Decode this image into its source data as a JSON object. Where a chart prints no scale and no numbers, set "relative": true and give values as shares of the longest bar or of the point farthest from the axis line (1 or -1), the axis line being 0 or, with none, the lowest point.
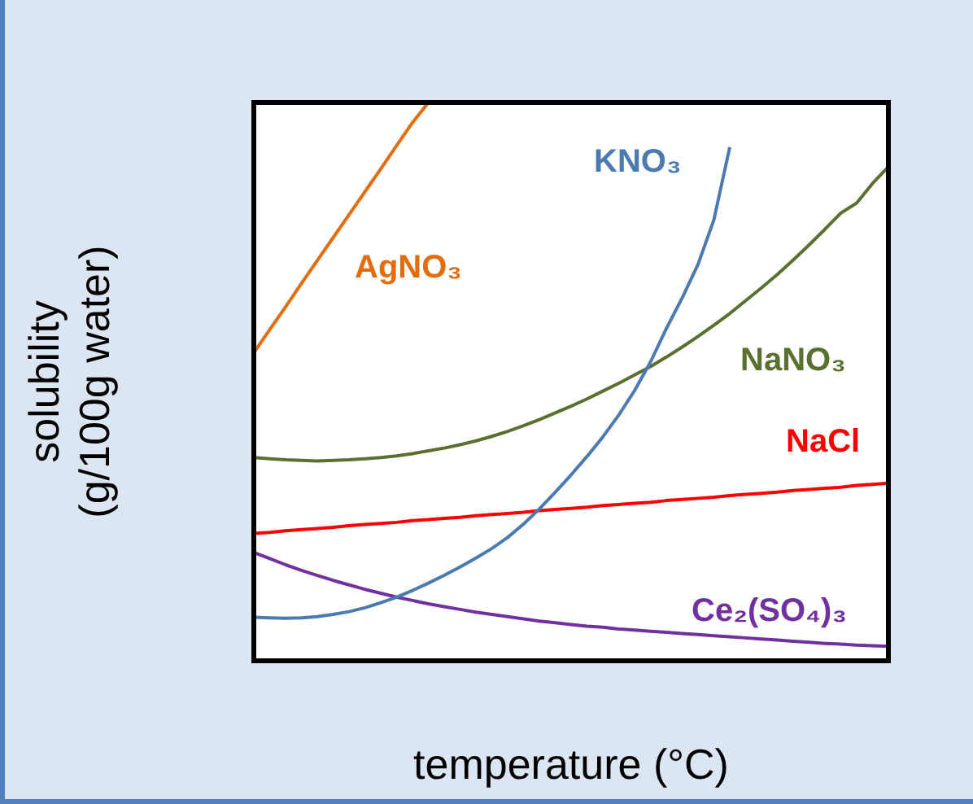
{
  "chart_data": {
    "type": "line",
    "relative": true,
    "xlabel": "temperature (°C)",
    "ylabel": "solubility\n(g/100g water)",
    "grid": false,
    "legend": false,
    "marker": "none",
    "line_style": "solid",
    "categories": [
      null,
      null,
      null,
      null,
      null,
      null,
      null,
      null,
      null,
      null,
      null,
      null,
      null,
      null,
      null,
      null,
      null,
      null,
      null,
      null,
      null,
      null,
      null,
      null,
      null,
      null,
      null,
      null,
      null,
      null,
      null,
      null,
      null,
      null,
      null,
      null,
      null,
      null,
      null,
      null,
      null
    ],
    "series": [
      {
        "name": "AgNO₃",
        "color": "#e46c0a",
        "values": [
          0.552,
          0.593,
          0.634,
          0.676,
          0.717,
          0.758,
          0.799,
          0.84,
          0.881,
          0.923,
          0.964,
          1,
          null,
          null,
          null,
          null,
          null,
          null,
          null,
          null,
          null,
          null,
          null,
          null,
          null,
          null,
          null,
          null,
          null,
          null,
          null,
          null,
          null,
          null,
          null,
          null,
          null,
          null,
          null,
          null,
          null
        ]
      },
      {
        "name": "KNO₃",
        "color": "#4a7ab0",
        "values": [
          0.078,
          0.077,
          0.076,
          0.077,
          0.079,
          0.083,
          0.088,
          0.095,
          0.104,
          0.114,
          0.126,
          0.139,
          0.153,
          0.168,
          0.184,
          0.201,
          0.221,
          0.245,
          0.272,
          0.302,
          0.333,
          0.366,
          0.401,
          0.44,
          0.484,
          0.535,
          0.595,
          0.65,
          0.71,
          0.79,
          0.92,
          null,
          null,
          null,
          null,
          null,
          null,
          null,
          null,
          null,
          null
        ]
      },
      {
        "name": "NaNO₃",
        "color": "#5a7030",
        "values": [
          0.364,
          0.362,
          0.36,
          0.359,
          0.358,
          0.359,
          0.36,
          0.362,
          0.364,
          0.367,
          0.371,
          0.376,
          0.381,
          0.387,
          0.394,
          0.402,
          0.411,
          0.421,
          0.432,
          0.444,
          0.456,
          0.469,
          0.483,
          0.497,
          0.512,
          0.527,
          0.544,
          0.562,
          0.581,
          0.601,
          0.622,
          0.645,
          0.668,
          0.692,
          0.718,
          0.745,
          0.773,
          0.802,
          0.82,
          0.855,
          0.885
        ]
      },
      {
        "name": "NaCl",
        "color": "#ff0000",
        "values": [
          0.228,
          0.23,
          0.233,
          0.235,
          0.237,
          0.239,
          0.242,
          0.244,
          0.246,
          0.248,
          0.251,
          0.253,
          0.255,
          0.257,
          0.26,
          0.262,
          0.264,
          0.266,
          0.269,
          0.271,
          0.273,
          0.275,
          0.278,
          0.28,
          0.282,
          0.284,
          0.287,
          0.289,
          0.291,
          0.293,
          0.296,
          0.298,
          0.3,
          0.302,
          0.305,
          0.307,
          0.309,
          0.311,
          0.314,
          0.316,
          0.318
        ]
      },
      {
        "name": "Ce₂(SO₄)₃",
        "color": "#7030a0",
        "values": [
          0.194,
          0.183,
          0.172,
          0.162,
          0.153,
          0.144,
          0.136,
          0.128,
          0.121,
          0.114,
          0.108,
          0.102,
          0.097,
          0.092,
          0.087,
          0.083,
          0.079,
          0.075,
          0.071,
          0.068,
          0.065,
          0.062,
          0.06,
          0.057,
          0.055,
          0.053,
          0.051,
          0.049,
          0.047,
          0.045,
          0.043,
          0.041,
          0.039,
          0.037,
          0.035,
          0.033,
          0.031,
          0.03,
          0.028,
          0.027,
          0.026
        ]
      }
    ]
  }
}
